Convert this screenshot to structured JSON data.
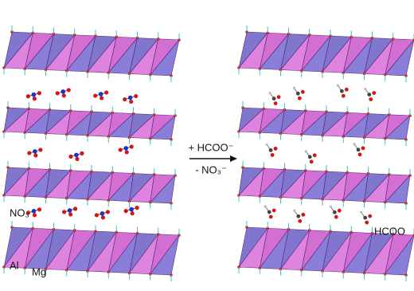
{
  "reaction": {
    "added": "+ HCOO⁻",
    "removed": "- NO₃⁻"
  },
  "labels": {
    "nitrate": "NO₃",
    "aluminium": "Al",
    "magnesium": "Mg",
    "formate": "HCOO"
  }
}
